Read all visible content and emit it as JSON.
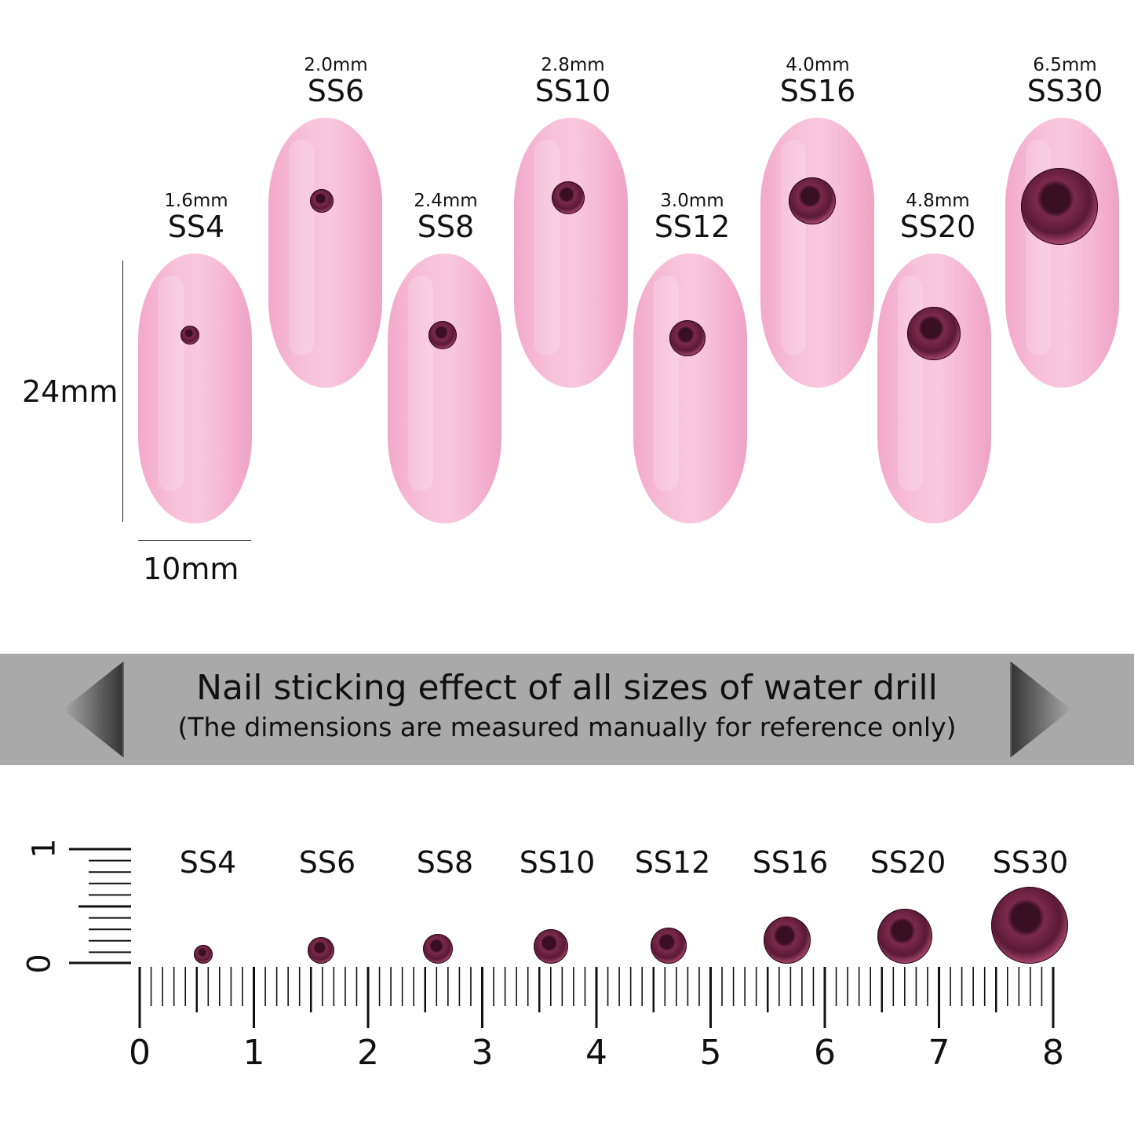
{
  "measure": {
    "height_label": "24mm",
    "width_label": "10mm"
  },
  "sizes": [
    {
      "code": "SS4",
      "mm": "1.6mm"
    },
    {
      "code": "SS6",
      "mm": "2.0mm"
    },
    {
      "code": "SS8",
      "mm": "2.4mm"
    },
    {
      "code": "SS10",
      "mm": "2.8mm"
    },
    {
      "code": "SS12",
      "mm": "3.0mm"
    },
    {
      "code": "SS16",
      "mm": "4.0mm"
    },
    {
      "code": "SS20",
      "mm": "4.8mm"
    },
    {
      "code": "SS30",
      "mm": "6.5mm"
    }
  ],
  "banner": {
    "title": "Nail sticking effect of all sizes of water drill",
    "subtitle": "(The dimensions are measured manually for reference only)"
  },
  "ruler": {
    "numbers": [
      "0",
      "1",
      "2",
      "3",
      "4",
      "5",
      "6",
      "7",
      "8"
    ],
    "vertical_numbers": [
      "0",
      "1"
    ]
  },
  "colors": {
    "nail": "#f7bcd6",
    "gem": "#6b2240",
    "banner": "#a9a9a9"
  }
}
